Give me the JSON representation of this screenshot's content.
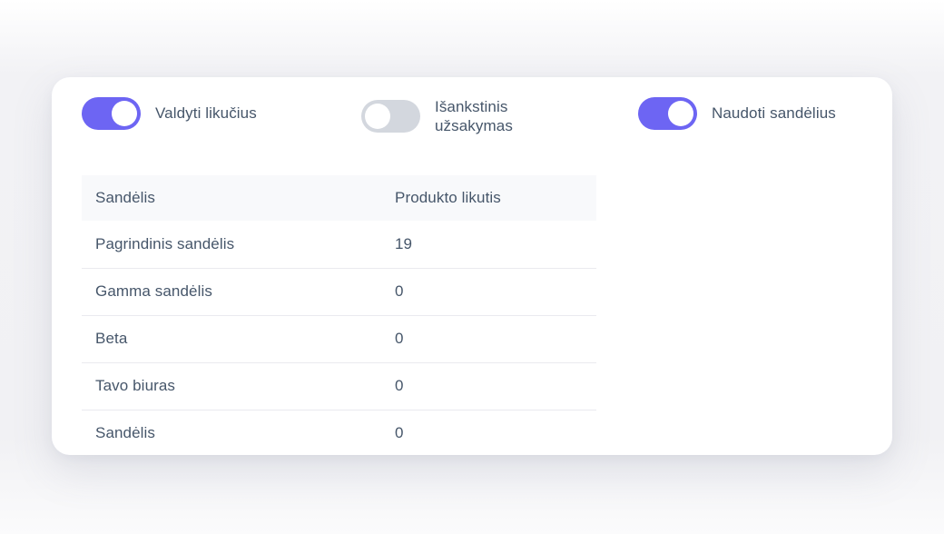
{
  "card": {
    "toggles": [
      {
        "label": "Valdyti likučius",
        "state": "on"
      },
      {
        "label": "Išankstinis užsakymas",
        "state": "off"
      },
      {
        "label": "Naudoti sandėlius",
        "state": "on"
      }
    ],
    "table": {
      "columns": [
        "Sandėlis",
        "Produkto likutis"
      ],
      "rows": [
        {
          "name": "Pagrindinis sandėlis",
          "value": "19"
        },
        {
          "name": "Gamma sandėlis",
          "value": "0"
        },
        {
          "name": "Beta",
          "value": "0"
        },
        {
          "name": "Tavo biuras",
          "value": "0"
        },
        {
          "name": "Sandėlis",
          "value": "0"
        }
      ]
    },
    "colors": {
      "toggle_on": "#6d65f3",
      "toggle_off": "#d3d7de",
      "text": "#46566a",
      "header_bg": "#f8f9fb",
      "divider": "#eaeaef"
    }
  }
}
